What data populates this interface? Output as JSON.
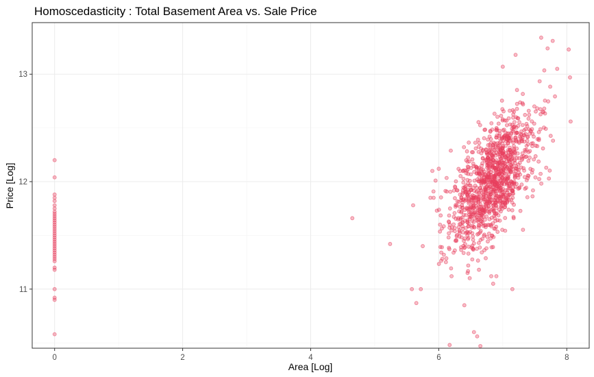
{
  "chart_data": {
    "type": "scatter",
    "title": "Homoscedasticity : Total Basement Area vs. Sale Price",
    "xlabel": "Area [Log]",
    "ylabel": "Price [Log]",
    "xlim": [
      -0.35,
      8.35
    ],
    "ylim": [
      10.45,
      13.48
    ],
    "x_ticks": [
      0,
      2,
      4,
      6,
      8
    ],
    "y_ticks": [
      11,
      12,
      13
    ],
    "x_tick_labels": [
      "0",
      "2",
      "4",
      "6",
      "8"
    ],
    "y_tick_labels": [
      "11",
      "12",
      "13"
    ],
    "grid": true,
    "legend": "none",
    "point_color": "#e8405e",
    "point_opacity": 0.35,
    "series": [
      {
        "x": [
          0,
          0,
          0,
          0,
          0,
          0,
          0,
          0,
          0,
          0,
          0,
          0,
          0,
          0,
          0,
          0,
          0,
          0,
          0,
          0,
          0,
          0,
          0,
          0,
          0,
          0,
          0,
          0,
          0,
          0,
          0,
          0,
          0,
          0,
          0,
          0,
          0,
          4.65,
          5.24,
          5.58,
          5.6,
          5.65,
          5.72,
          5.75,
          5.87,
          5.9,
          5.92,
          5.95,
          5.97,
          6.0,
          6.02,
          6.04,
          6.05,
          6.08,
          6.17,
          6.2,
          6.4,
          6.45,
          6.55,
          6.6,
          6.65,
          6.82,
          6.85,
          6.9,
          7.0,
          7.15,
          7.2,
          7.6,
          7.7,
          7.78,
          7.85,
          8.03,
          8.05,
          8.06
        ],
        "y": [
          12.2,
          12.04,
          11.88,
          11.85,
          11.82,
          11.78,
          11.75,
          11.7,
          11.68,
          11.66,
          11.64,
          11.62,
          11.6,
          11.58,
          11.56,
          11.54,
          11.52,
          11.5,
          11.48,
          11.46,
          11.44,
          11.42,
          11.4,
          11.38,
          11.36,
          11.34,
          11.32,
          11.3,
          11.28,
          11.26,
          11.2,
          11.18,
          11.0,
          10.92,
          10.9,
          10.58,
          11.72,
          11.66,
          11.42,
          11.0,
          11.78,
          10.87,
          11.0,
          11.4,
          11.85,
          12.1,
          11.85,
          12.01,
          11.73,
          12.12,
          11.6,
          11.34,
          11.39,
          11.32,
          10.48,
          11.12,
          10.85,
          11.15,
          10.6,
          10.56,
          10.47,
          11.12,
          11.05,
          11.12,
          13.07,
          11.0,
          13.18,
          13.34,
          13.24,
          13.31,
          13.05,
          13.23,
          12.97,
          12.56
        ]
      }
    ]
  }
}
